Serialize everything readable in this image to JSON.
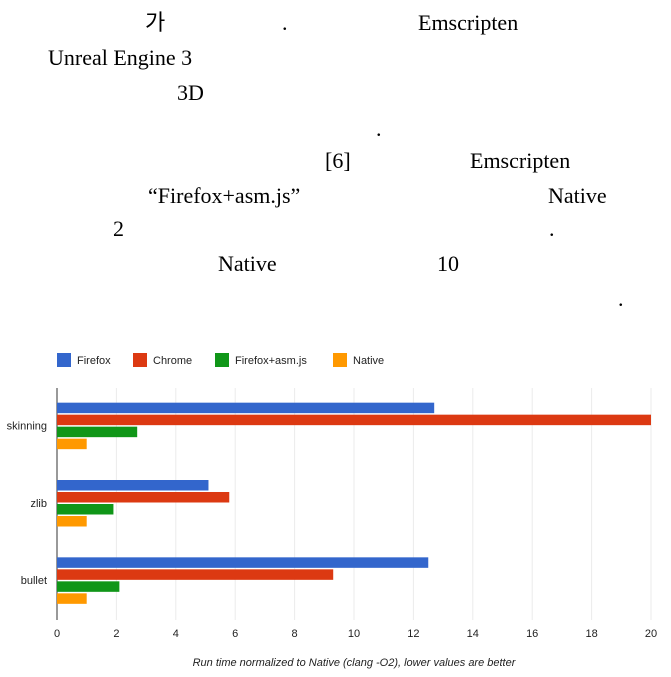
{
  "paragraph": [
    "가",
    ".",
    "Emscripten",
    "Unreal  Engine  3",
    "3D",
    ".",
    "[6]",
    "Emscripten",
    "“Firefox+asm.js”",
    "Native",
    "2",
    ".",
    "Native",
    "10",
    "."
  ],
  "chart_data": {
    "type": "bar",
    "orientation": "horizontal",
    "x_label": "Run time normalized to Native (clang -O2), lower values are better",
    "categories": [
      "skinning",
      "zlib",
      "bullet"
    ],
    "series": [
      {
        "name": "Firefox",
        "color": "#3366cc",
        "values": [
          12.7,
          5.1,
          12.5
        ]
      },
      {
        "name": "Chrome",
        "color": "#dc3912",
        "values": [
          20,
          5.8,
          9.3
        ]
      },
      {
        "name": "Firefox+asm.js",
        "color": "#109618",
        "values": [
          2.7,
          1.9,
          2.1
        ]
      },
      {
        "name": "Native",
        "color": "#ff9900",
        "values": [
          1,
          1,
          1
        ]
      }
    ],
    "xlim": [
      0,
      20
    ],
    "xticks": [
      0,
      2,
      4,
      6,
      8,
      10,
      12,
      14,
      16,
      18,
      20
    ],
    "grid": true,
    "legend": "top"
  }
}
